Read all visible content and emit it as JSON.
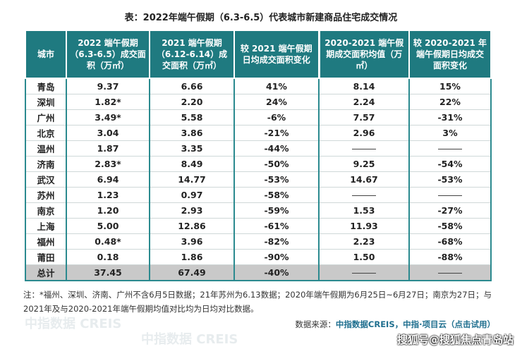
{
  "title": "表：2022年端午假期（6.3-6.5）代表城市新建商品住宅成交情况",
  "headers": [
    "城市",
    "2022 端午假期（6.3-6.5）成交面积（万㎡）",
    "2021 端午假期（6.12-6.14）成交面积（万㎡）",
    "较 2021 端午假期日均成交面积变化",
    "2020-2021 端午假期成交面积均值（万㎡）",
    "较 2020-2021 年端午假期日均成交面积变化"
  ],
  "rows": [
    [
      "青岛",
      "9.37",
      "6.66",
      "41%",
      "8.14",
      "15%"
    ],
    [
      "深圳",
      "1.82*",
      "2.20",
      "24%",
      "2.24",
      "22%"
    ],
    [
      "广州",
      "3.49*",
      "5.58",
      "-6%",
      "7.57",
      "-31%"
    ],
    [
      "北京",
      "3.04",
      "3.86",
      "-21%",
      "2.96",
      "3%"
    ],
    [
      "温州",
      "1.87",
      "3.35",
      "-44%",
      "",
      ""
    ],
    [
      "济南",
      "2.83*",
      "8.49",
      "-50%",
      "9.25",
      "-54%"
    ],
    [
      "武汉",
      "6.94",
      "14.77",
      "-53%",
      "14.67",
      "-53%"
    ],
    [
      "苏州",
      "1.23",
      "0.97",
      "-58%",
      "",
      ""
    ],
    [
      "南京",
      "1.20",
      "2.93",
      "-59%",
      "1.53",
      "-27%"
    ],
    [
      "上海",
      "5.00",
      "12.86",
      "-61%",
      "11.93",
      "-58%"
    ],
    [
      "福州",
      "0.48*",
      "3.96",
      "-82%",
      "2.23",
      "-68%"
    ],
    [
      "莆田",
      "0.18",
      "1.86",
      "-90%",
      "1.50",
      "-88%"
    ],
    [
      "总计",
      "37.45",
      "67.49",
      "-40%",
      "",
      ""
    ]
  ],
  "note": "注：*福州、深圳、济南、广州不含6月5日数据；21年苏州为6.13数据；2020年端午假期为6月25日~6月27日；南京为27日；与2021年及与2020-2021年端午假期均值对比均为日均对比数据。",
  "source_label": "数据来源：",
  "source_value": "中指数据CREIS，中指·项目云（点击试用）",
  "watermark": "搜狐号@搜狐焦点青岛站",
  "bg_watermark": "中指数据 CREIS"
}
